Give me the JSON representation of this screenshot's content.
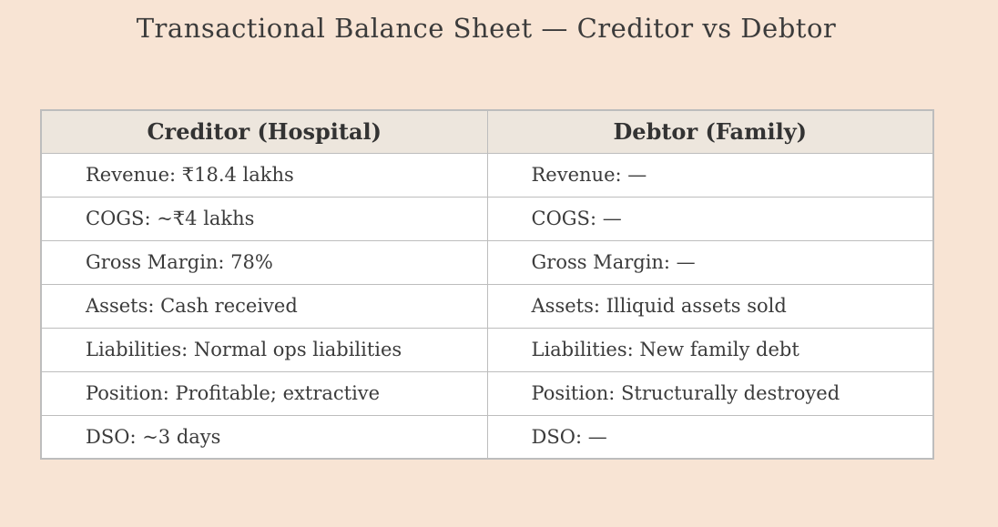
{
  "colors": {
    "page_bg": "#f8e4d4",
    "header_bg": "#ede6dd",
    "row_bg": "#ffffff",
    "border": "#bdbdbd",
    "text": "#3b3b3b"
  },
  "chart_data": {
    "type": "table",
    "title": "Transactional Balance Sheet — Creditor vs Debtor",
    "columns": [
      "Creditor (Hospital)",
      "Debtor (Family)"
    ],
    "rows": [
      [
        "Revenue: ₹18.4 lakhs",
        "Revenue: —"
      ],
      [
        "COGS: ~₹4 lakhs",
        "COGS: —"
      ],
      [
        "Gross Margin: 78%",
        "Gross Margin: —"
      ],
      [
        "Assets: Cash received",
        "Assets: Illiquid assets sold"
      ],
      [
        "Liabilities: Normal ops liabilities",
        "Liabilities: New family debt"
      ],
      [
        "Position: Profitable; extractive",
        "Position: Structurally destroyed"
      ],
      [
        "DSO: ~3 days",
        "DSO: —"
      ]
    ],
    "layout": {
      "legend": "none",
      "grid": "table-borders",
      "header_align": "center",
      "cell_align": "left"
    }
  }
}
